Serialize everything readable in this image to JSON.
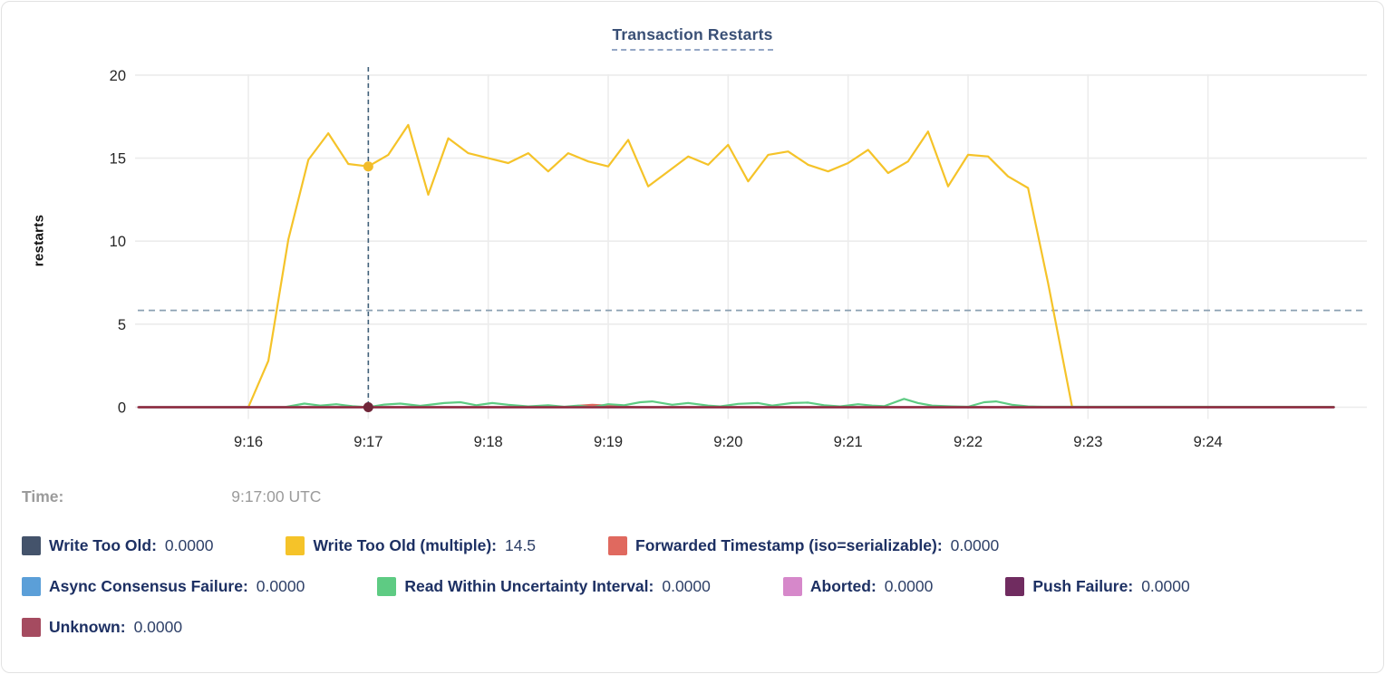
{
  "title": "Transaction Restarts",
  "tooltip": {
    "time_label": "Time:",
    "time_value": "9:17:00 UTC"
  },
  "chart_data": {
    "type": "line",
    "title": "Transaction Restarts",
    "xlabel": "",
    "ylabel": "restarts",
    "ylim": [
      0,
      20
    ],
    "yticks": [
      0,
      5,
      10,
      15,
      20
    ],
    "xticks": [
      {
        "t": 60,
        "label": "9:16"
      },
      {
        "t": 120,
        "label": "9:17"
      },
      {
        "t": 180,
        "label": "9:18"
      },
      {
        "t": 240,
        "label": "9:19"
      },
      {
        "t": 300,
        "label": "9:20"
      },
      {
        "t": 360,
        "label": "9:21"
      },
      {
        "t": 420,
        "label": "9:22"
      },
      {
        "t": 480,
        "label": "9:23"
      },
      {
        "t": 540,
        "label": "9:24"
      }
    ],
    "x_domain_seconds_after_915": [
      5,
      603
    ],
    "grid": true,
    "average_line": {
      "value": 5.83,
      "style": "dashed",
      "color": "#8ba0b2"
    },
    "hover": {
      "t": 120,
      "time": "9:17:00 UTC",
      "crosshair_color": "#41607a",
      "points": [
        {
          "series": "Write Too Old (multiple)",
          "value": 14.5
        },
        {
          "series": "Unknown",
          "value": 0
        }
      ]
    },
    "legend_rows": [
      [
        0,
        1,
        2
      ],
      [
        3,
        4,
        5,
        6
      ],
      [
        7
      ]
    ],
    "series": [
      {
        "name": "Write Too Old",
        "color": "#44536b",
        "value_at_hover": "0.0000",
        "points": [
          [
            5,
            0
          ],
          [
            603,
            0
          ]
        ]
      },
      {
        "name": "Write Too Old (multiple)",
        "color": "#f5c329",
        "dot_color": "#f2bc2a",
        "value_at_hover": "14.5",
        "points": [
          [
            60,
            0
          ],
          [
            70,
            2.8
          ],
          [
            80,
            10.1
          ],
          [
            90,
            14.9
          ],
          [
            100,
            16.5
          ],
          [
            110,
            14.65
          ],
          [
            120,
            14.5
          ],
          [
            130,
            15.2
          ],
          [
            140,
            17
          ],
          [
            150,
            12.8
          ],
          [
            160,
            16.2
          ],
          [
            170,
            15.3
          ],
          [
            180,
            15
          ],
          [
            190,
            14.7
          ],
          [
            200,
            15.3
          ],
          [
            210,
            14.2
          ],
          [
            220,
            15.3
          ],
          [
            230,
            14.8
          ],
          [
            240,
            14.5
          ],
          [
            250,
            16.1
          ],
          [
            260,
            13.3
          ],
          [
            270,
            14.2
          ],
          [
            280,
            15.1
          ],
          [
            290,
            14.6
          ],
          [
            300,
            15.8
          ],
          [
            310,
            13.6
          ],
          [
            320,
            15.2
          ],
          [
            330,
            15.4
          ],
          [
            340,
            14.6
          ],
          [
            350,
            14.2
          ],
          [
            360,
            14.7
          ],
          [
            370,
            15.5
          ],
          [
            380,
            14.1
          ],
          [
            390,
            14.8
          ],
          [
            400,
            16.6
          ],
          [
            410,
            13.3
          ],
          [
            420,
            15.2
          ],
          [
            430,
            15.1
          ],
          [
            440,
            13.9
          ],
          [
            450,
            13.2
          ],
          [
            460,
            7.5
          ],
          [
            472,
            0.05
          ]
        ]
      },
      {
        "name": "Forwarded Timestamp (iso=serializable)",
        "color": "#e0695f",
        "value_at_hover": "0.0000",
        "points": [
          [
            5,
            0
          ],
          [
            220,
            0
          ],
          [
            226,
            0.1
          ],
          [
            232,
            0.14
          ],
          [
            240,
            0.1
          ],
          [
            248,
            0.04
          ],
          [
            254,
            0
          ],
          [
            603,
            0
          ]
        ]
      },
      {
        "name": "Async Consensus Failure",
        "color": "#5b9fd8",
        "value_at_hover": "0.0000",
        "points": [
          [
            5,
            0
          ],
          [
            603,
            0
          ]
        ]
      },
      {
        "name": "Read Within Uncertainty Interval",
        "color": "#5ecb83",
        "value_at_hover": "0.0000",
        "points": [
          [
            5,
            0
          ],
          [
            78,
            0
          ],
          [
            88,
            0.22
          ],
          [
            96,
            0.1
          ],
          [
            104,
            0.18
          ],
          [
            112,
            0.06
          ],
          [
            120,
            0
          ],
          [
            128,
            0.16
          ],
          [
            136,
            0.22
          ],
          [
            146,
            0.08
          ],
          [
            158,
            0.25
          ],
          [
            166,
            0.3
          ],
          [
            174,
            0.12
          ],
          [
            182,
            0.25
          ],
          [
            190,
            0.15
          ],
          [
            200,
            0.05
          ],
          [
            210,
            0.12
          ],
          [
            218,
            0.03
          ],
          [
            225,
            0.1
          ],
          [
            232,
            0
          ],
          [
            240,
            0.18
          ],
          [
            248,
            0.12
          ],
          [
            256,
            0.3
          ],
          [
            262,
            0.35
          ],
          [
            272,
            0.15
          ],
          [
            280,
            0.25
          ],
          [
            290,
            0.1
          ],
          [
            296,
            0.05
          ],
          [
            305,
            0.2
          ],
          [
            315,
            0.25
          ],
          [
            322,
            0.1
          ],
          [
            332,
            0.25
          ],
          [
            340,
            0.28
          ],
          [
            348,
            0.12
          ],
          [
            356,
            0.05
          ],
          [
            365,
            0.18
          ],
          [
            372,
            0.1
          ],
          [
            378,
            0.06
          ],
          [
            388,
            0.5
          ],
          [
            395,
            0.25
          ],
          [
            402,
            0.1
          ],
          [
            412,
            0.05
          ],
          [
            420,
            0.03
          ],
          [
            428,
            0.3
          ],
          [
            434,
            0.35
          ],
          [
            442,
            0.15
          ],
          [
            450,
            0.05
          ],
          [
            458,
            0.03
          ],
          [
            603,
            0.02
          ]
        ]
      },
      {
        "name": "Aborted",
        "color": "#d688ca",
        "value_at_hover": "0.0000",
        "points": [
          [
            5,
            0
          ],
          [
            603,
            0
          ]
        ]
      },
      {
        "name": "Push Failure",
        "color": "#702c60",
        "value_at_hover": "0.0000",
        "points": [
          [
            5,
            0
          ],
          [
            603,
            0
          ]
        ]
      },
      {
        "name": "Unknown",
        "color": "#a54b60",
        "line_color": "#93283b",
        "dot_color": "#702639",
        "value_at_hover": "0.0000",
        "points": [
          [
            5,
            0
          ],
          [
            603,
            0
          ]
        ]
      }
    ]
  }
}
